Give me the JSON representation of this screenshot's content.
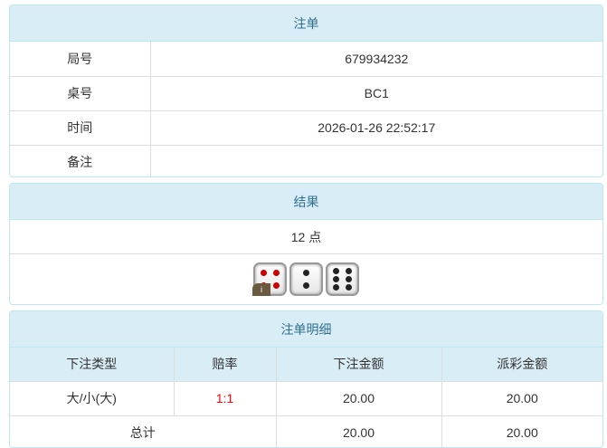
{
  "order": {
    "title": "注单",
    "rows": [
      {
        "label": "局号",
        "value": "679934232"
      },
      {
        "label": "桌号",
        "value": "BC1"
      },
      {
        "label": "时间",
        "value": "2026-01-26 22:52:17"
      },
      {
        "label": "备注",
        "value": ""
      }
    ]
  },
  "result": {
    "title": "结果",
    "points": "12 点",
    "dice": [
      4,
      2,
      6
    ],
    "badge": "i"
  },
  "detail": {
    "title": "注单明细",
    "headers": [
      "下注类型",
      "赔率",
      "下注金额",
      "派彩金额"
    ],
    "row": {
      "type": "大/小(大)",
      "odds": "1:1",
      "bet": "20.00",
      "payout": "20.00"
    },
    "total": {
      "label": "总计",
      "bet": "20.00",
      "payout": "20.00"
    }
  },
  "colors": {
    "header_bg": "#d9edf7",
    "header_text": "#31708f",
    "odds": "#ff0000"
  }
}
